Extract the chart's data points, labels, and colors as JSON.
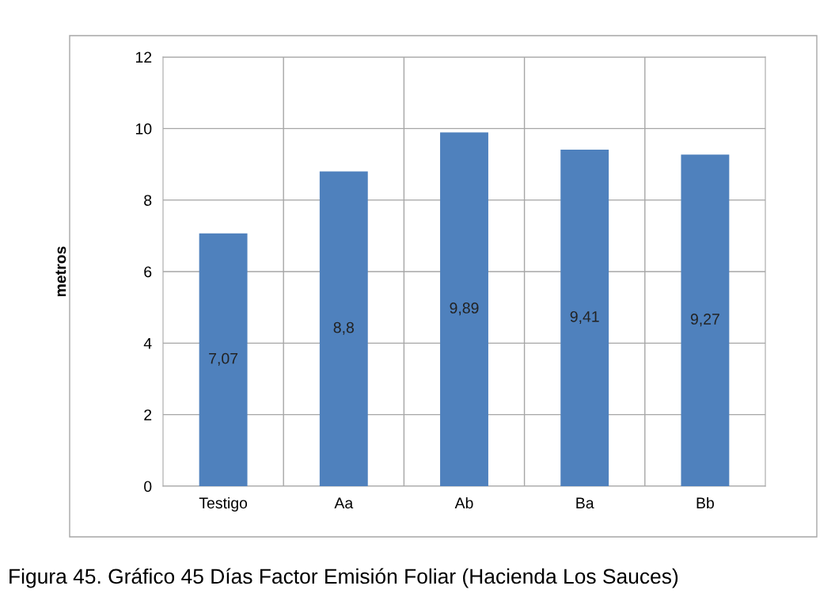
{
  "chart_data": {
    "type": "bar",
    "ylabel": "metros",
    "categories": [
      "Testigo",
      "Aa",
      "Ab",
      "Ba",
      "Bb"
    ],
    "values": [
      7.07,
      8.8,
      9.89,
      9.41,
      9.27
    ],
    "value_labels": [
      "7,07",
      "8,8",
      "9,89",
      "9,41",
      "9,27"
    ],
    "color": "#4f81bd",
    "ylim": [
      0,
      12
    ],
    "yticks": [
      0,
      2,
      4,
      6,
      8,
      10,
      12
    ],
    "grid": true,
    "annotations": [
      "Figura 45. Gráfico 45 Días Factor Emisión Foliar (Hacienda Los Sauces)"
    ]
  }
}
